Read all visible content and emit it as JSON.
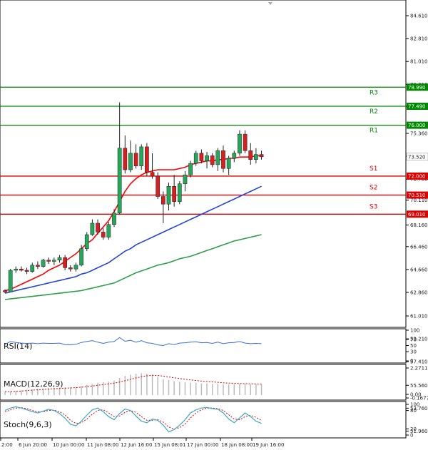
{
  "chart_data": {
    "type": "candlestick",
    "x_ticks": [
      "2:00",
      "6 Jun 20:00",
      "10 Jun 00:00",
      "11 Jun 08:00",
      "12 Jun 16:00",
      "15 Jun 08:01",
      "17 Jun 00:00",
      "18 Jun 08:00",
      "19 Jun 16:00"
    ],
    "price_ticks": [
      "84.610",
      "82.810",
      "81.010",
      "79.210",
      "77.490",
      "75.360",
      "73.560",
      "71.760",
      "70.110",
      "68.160",
      "66.460",
      "64.660",
      "62.860",
      "61.010",
      "59.210",
      "57.410",
      "55.560",
      "53.760",
      "51.960"
    ],
    "ylim": [
      51.96,
      86.0
    ],
    "current_price": "73.520",
    "levels": [
      {
        "name": "R3",
        "value": 78.99,
        "label": "78.990",
        "color": "#008800"
      },
      {
        "name": "R2",
        "value": 77.49,
        "label": "77.490",
        "color": "#008800"
      },
      {
        "name": "R1",
        "value": 76.0,
        "label": "76.000",
        "color": "#008800"
      },
      {
        "name": "S1",
        "value": 72.0,
        "label": "72.000",
        "color": "#dd0000"
      },
      {
        "name": "S2",
        "value": 70.51,
        "label": "70.510",
        "color": "#dd0000"
      },
      {
        "name": "S3",
        "value": 69.01,
        "label": "69.010",
        "color": "#dd0000"
      }
    ],
    "candles": [
      [
        63.0,
        63.1,
        62.8,
        62.9
      ],
      [
        62.9,
        64.7,
        62.9,
        64.6
      ],
      [
        64.6,
        64.9,
        64.4,
        64.7
      ],
      [
        64.7,
        64.9,
        64.5,
        64.6
      ],
      [
        64.6,
        64.8,
        64.3,
        64.5
      ],
      [
        64.5,
        65.2,
        64.4,
        65.0
      ],
      [
        65.0,
        65.3,
        64.7,
        64.9
      ],
      [
        64.9,
        65.5,
        64.8,
        65.4
      ],
      [
        65.4,
        65.6,
        65.1,
        65.3
      ],
      [
        65.3,
        65.6,
        65.0,
        65.4
      ],
      [
        65.4,
        65.8,
        65.2,
        65.6
      ],
      [
        65.6,
        65.8,
        64.6,
        64.8
      ],
      [
        64.8,
        65.0,
        64.5,
        64.7
      ],
      [
        64.7,
        65.2,
        64.5,
        65.0
      ],
      [
        65.0,
        66.6,
        64.9,
        66.3
      ],
      [
        66.3,
        67.6,
        66.1,
        67.4
      ],
      [
        67.4,
        68.6,
        67.3,
        68.3
      ],
      [
        68.3,
        68.6,
        67.4,
        67.6
      ],
      [
        67.6,
        67.9,
        67.0,
        67.2
      ],
      [
        67.2,
        68.4,
        67.0,
        68.2
      ],
      [
        68.2,
        69.4,
        68.0,
        69.1
      ],
      [
        69.1,
        77.8,
        69.0,
        74.2
      ],
      [
        74.2,
        75.2,
        72.2,
        72.5
      ],
      [
        72.5,
        74.8,
        72.3,
        73.8
      ],
      [
        73.8,
        74.5,
        72.6,
        72.8
      ],
      [
        72.8,
        74.5,
        72.5,
        74.3
      ],
      [
        74.3,
        74.6,
        72.0,
        72.3
      ],
      [
        72.3,
        73.8,
        71.8,
        72.0
      ],
      [
        72.0,
        72.3,
        70.2,
        70.4
      ],
      [
        70.4,
        70.8,
        68.3,
        69.8
      ],
      [
        69.8,
        71.5,
        69.3,
        71.2
      ],
      [
        71.2,
        72.1,
        69.6,
        70.0
      ],
      [
        70.0,
        71.6,
        69.8,
        71.4
      ],
      [
        71.4,
        72.4,
        70.8,
        72.1
      ],
      [
        72.1,
        73.2,
        71.9,
        73.0
      ],
      [
        73.0,
        74.0,
        72.8,
        73.8
      ],
      [
        73.8,
        74.1,
        73.0,
        73.2
      ],
      [
        73.2,
        73.9,
        72.6,
        73.6
      ],
      [
        73.6,
        73.8,
        72.7,
        72.9
      ],
      [
        72.9,
        74.2,
        72.4,
        74.0
      ],
      [
        74.0,
        74.4,
        72.3,
        72.6
      ],
      [
        72.6,
        73.6,
        72.1,
        73.4
      ],
      [
        73.4,
        74.0,
        73.1,
        73.8
      ],
      [
        73.8,
        75.6,
        73.6,
        75.3
      ],
      [
        75.3,
        75.6,
        73.8,
        74.0
      ],
      [
        74.0,
        74.6,
        72.9,
        73.3
      ],
      [
        73.3,
        74.2,
        73.0,
        73.7
      ],
      [
        73.7,
        74.0,
        73.3,
        73.52
      ]
    ],
    "ma_series": [
      {
        "color": "#ff0000",
        "values": [
          63.0,
          63.1,
          63.3,
          63.5,
          63.7,
          63.9,
          64.1,
          64.3,
          64.6,
          64.8,
          65.0,
          65.3,
          65.6,
          65.9,
          66.3,
          66.7,
          67.0,
          67.5,
          68.0,
          68.5,
          69.2,
          70.0,
          70.8,
          71.4,
          71.8,
          72.1,
          72.3,
          72.4,
          72.5,
          72.5,
          72.5,
          72.5,
          72.6,
          72.7,
          72.9,
          73.0,
          73.1,
          73.2,
          73.2,
          73.3,
          73.3,
          73.4,
          73.4,
          73.5,
          73.5,
          73.5,
          73.6,
          73.6
        ]
      },
      {
        "color": "#2244dd",
        "values": [
          62.8,
          62.9,
          63.0,
          63.1,
          63.2,
          63.3,
          63.4,
          63.5,
          63.6,
          63.7,
          63.8,
          63.9,
          64.0,
          64.1,
          64.3,
          64.4,
          64.6,
          64.8,
          65.0,
          65.2,
          65.5,
          65.8,
          66.1,
          66.3,
          66.6,
          66.8,
          67.0,
          67.2,
          67.4,
          67.6,
          67.8,
          68.0,
          68.2,
          68.4,
          68.6,
          68.8,
          69.0,
          69.2,
          69.4,
          69.6,
          69.8,
          70.0,
          70.2,
          70.4,
          70.6,
          70.8,
          71.0,
          71.2
        ]
      },
      {
        "color": "#2e9e4a",
        "values": [
          62.3,
          62.35,
          62.4,
          62.45,
          62.5,
          62.55,
          62.6,
          62.65,
          62.7,
          62.75,
          62.8,
          62.85,
          62.9,
          62.95,
          63.0,
          63.1,
          63.2,
          63.3,
          63.4,
          63.5,
          63.6,
          63.8,
          64.0,
          64.2,
          64.4,
          64.55,
          64.7,
          64.85,
          65.0,
          65.1,
          65.2,
          65.35,
          65.5,
          65.6,
          65.7,
          65.85,
          66.0,
          66.15,
          66.3,
          66.45,
          66.6,
          66.75,
          66.9,
          67.0,
          67.1,
          67.2,
          67.3,
          67.4
        ]
      }
    ],
    "rsi": {
      "label": "RSI(14)",
      "ticks": [
        "100",
        "70",
        "50",
        "30",
        "0"
      ],
      "values": [
        54,
        63,
        60,
        58,
        57,
        58,
        56,
        58,
        57,
        57,
        58,
        53,
        52,
        54,
        60,
        63,
        66,
        61,
        57,
        61,
        63,
        76,
        64,
        67,
        61,
        66,
        59,
        57,
        52,
        50,
        56,
        53,
        58,
        59,
        61,
        62,
        59,
        60,
        57,
        61,
        56,
        59,
        60,
        63,
        58,
        56,
        57,
        56
      ]
    },
    "macd": {
      "label": "MACD(12,26,9)",
      "ticks": [
        "2.2711",
        "0.00",
        "-0.1677"
      ],
      "hist": [
        0.3,
        0.35,
        0.4,
        0.45,
        0.5,
        0.55,
        0.6,
        0.62,
        0.65,
        0.68,
        0.7,
        0.72,
        0.74,
        0.78,
        0.85,
        0.95,
        1.05,
        1.15,
        1.2,
        1.25,
        1.35,
        1.6,
        1.8,
        1.9,
        2.0,
        2.05,
        2.0,
        1.9,
        1.7,
        1.5,
        1.4,
        1.3,
        1.25,
        1.2,
        1.15,
        1.15,
        1.1,
        1.1,
        1.05,
        1.05,
        1.0,
        1.0,
        1.0,
        1.05,
        1.05,
        1.0,
        1.0,
        1.0
      ],
      "signal": [
        0.3,
        0.32,
        0.35,
        0.38,
        0.42,
        0.46,
        0.5,
        0.53,
        0.56,
        0.59,
        0.62,
        0.65,
        0.67,
        0.7,
        0.74,
        0.79,
        0.85,
        0.92,
        0.98,
        1.05,
        1.12,
        1.22,
        1.35,
        1.48,
        1.6,
        1.72,
        1.8,
        1.85,
        1.83,
        1.77,
        1.7,
        1.62,
        1.55,
        1.48,
        1.42,
        1.36,
        1.31,
        1.27,
        1.23,
        1.19,
        1.15,
        1.12,
        1.1,
        1.08,
        1.07,
        1.06,
        1.05,
        1.04
      ]
    },
    "stoch": {
      "label": "Stoch(9,6,3)",
      "ticks": [
        "100",
        "80",
        "20",
        "0"
      ],
      "k": [
        80,
        88,
        92,
        88,
        82,
        76,
        72,
        78,
        84,
        80,
        70,
        55,
        35,
        30,
        45,
        65,
        82,
        88,
        76,
        60,
        50,
        70,
        85,
        80,
        62,
        45,
        40,
        52,
        48,
        32,
        10,
        18,
        32,
        50,
        72,
        82,
        88,
        90,
        86,
        84,
        72,
        52,
        40,
        56,
        72,
        60,
        45,
        38
      ],
      "d": [
        75,
        82,
        88,
        89,
        86,
        80,
        76,
        76,
        80,
        81,
        76,
        65,
        48,
        38,
        40,
        52,
        68,
        80,
        82,
        72,
        60,
        62,
        74,
        80,
        74,
        60,
        48,
        48,
        50,
        42,
        26,
        20,
        24,
        36,
        56,
        72,
        82,
        88,
        88,
        86,
        80,
        66,
        52,
        50,
        60,
        64,
        58,
        48
      ]
    }
  }
}
